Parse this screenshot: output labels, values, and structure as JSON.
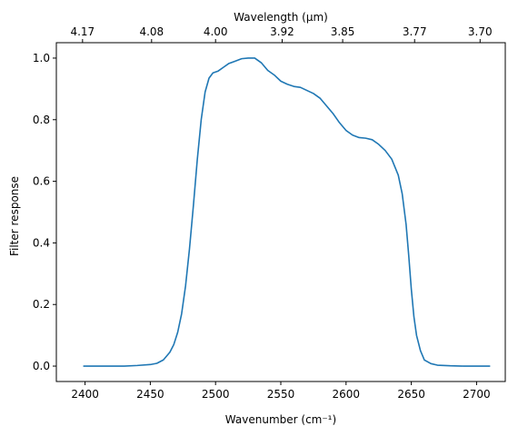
{
  "chart_data": {
    "type": "line",
    "xlabel": "Wavenumber (cm⁻¹)",
    "ylabel": "Filter response",
    "top_xlabel": "Wavelength (μm)",
    "xlim": [
      2378,
      2722
    ],
    "ylim": [
      -0.05,
      1.05
    ],
    "x_ticks": [
      2400,
      2450,
      2500,
      2550,
      2600,
      2650,
      2700
    ],
    "x_tick_labels": [
      "2400",
      "2450",
      "2500",
      "2550",
      "2600",
      "2650",
      "2700"
    ],
    "y_ticks": [
      0.0,
      0.2,
      0.4,
      0.6,
      0.8,
      1.0
    ],
    "y_tick_labels": [
      "0.0",
      "0.2",
      "0.4",
      "0.6",
      "0.8",
      "1.0"
    ],
    "top_ticks": [
      4.17,
      4.08,
      4.0,
      3.92,
      3.85,
      3.77,
      3.7
    ],
    "top_tick_labels": [
      "4.17",
      "4.08",
      "4.00",
      "3.92",
      "3.85",
      "3.77",
      "3.70"
    ],
    "grid": false,
    "series": [
      {
        "color": "#1f77b4",
        "x": [
          2399,
          2410,
          2420,
          2430,
          2440,
          2450,
          2455,
          2460,
          2465,
          2468,
          2471,
          2474,
          2477,
          2480,
          2483,
          2486,
          2489,
          2492,
          2495,
          2498,
          2502,
          2506,
          2510,
          2515,
          2520,
          2525,
          2530,
          2535,
          2540,
          2545,
          2550,
          2555,
          2560,
          2565,
          2570,
          2575,
          2580,
          2585,
          2590,
          2595,
          2600,
          2605,
          2610,
          2615,
          2620,
          2625,
          2630,
          2635,
          2640,
          2643,
          2646,
          2648,
          2650,
          2652,
          2654,
          2657,
          2660,
          2665,
          2670,
          2680,
          2690,
          2700,
          2710
        ],
        "y": [
          0.0,
          0.0,
          0.0,
          0.0,
          0.002,
          0.005,
          0.009,
          0.02,
          0.045,
          0.07,
          0.11,
          0.17,
          0.26,
          0.38,
          0.52,
          0.67,
          0.8,
          0.89,
          0.935,
          0.952,
          0.958,
          0.97,
          0.982,
          0.99,
          0.998,
          1.0,
          1.0,
          0.985,
          0.96,
          0.945,
          0.925,
          0.915,
          0.908,
          0.905,
          0.895,
          0.885,
          0.87,
          0.845,
          0.82,
          0.79,
          0.765,
          0.75,
          0.742,
          0.74,
          0.735,
          0.72,
          0.7,
          0.672,
          0.62,
          0.56,
          0.46,
          0.36,
          0.25,
          0.16,
          0.1,
          0.05,
          0.02,
          0.008,
          0.003,
          0.001,
          0.0,
          0.0,
          0.0
        ]
      }
    ]
  }
}
